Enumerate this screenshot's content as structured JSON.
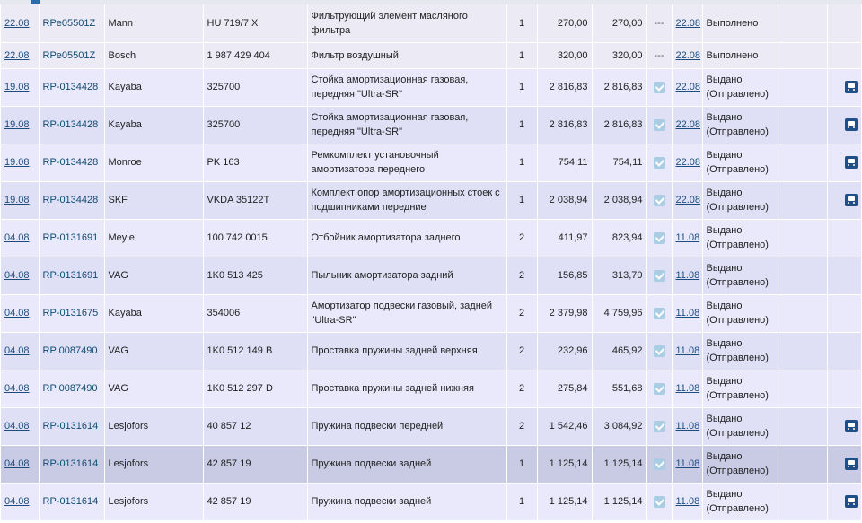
{
  "rows": [
    {
      "date": "22.08",
      "order": "RPe05501Z",
      "brand": "Mann",
      "article": "HU 719/7 X",
      "description": "Фильтрующий элемент масляного фильтра",
      "qty": "1",
      "price": "270,00",
      "sum": "270,00",
      "mark": "---",
      "delivery_date": "22.08",
      "status": "Выполнено",
      "truck": false,
      "style": "plain"
    },
    {
      "date": "22.08",
      "order": "RPe05501Z",
      "brand": "Bosch",
      "article": "1 987 429 404",
      "description": "Фильтр воздушный",
      "qty": "1",
      "price": "320,00",
      "sum": "320,00",
      "mark": "---",
      "delivery_date": "22.08",
      "status": "Выполнено",
      "truck": false,
      "style": "plain",
      "single": true
    },
    {
      "date": "19.08",
      "order": "RP-0134428",
      "brand": "Kayaba",
      "article": "325700",
      "description": "Стойка амортизационная газовая, передняя \"Ultra-SR\"",
      "qty": "1",
      "price": "2 816,83",
      "sum": "2 816,83",
      "mark": "check",
      "delivery_date": "22.08",
      "status": "Выдано (Отправлено)",
      "truck": true,
      "style": "odd"
    },
    {
      "date": "19.08",
      "order": "RP-0134428",
      "brand": "Kayaba",
      "article": "325700",
      "description": "Стойка амортизационная газовая, передняя \"Ultra-SR\"",
      "qty": "1",
      "price": "2 816,83",
      "sum": "2 816,83",
      "mark": "check",
      "delivery_date": "22.08",
      "status": "Выдано (Отправлено)",
      "truck": true,
      "style": "even"
    },
    {
      "date": "19.08",
      "order": "RP-0134428",
      "brand": "Monroe",
      "article": "PK 163",
      "description": "Ремкомплект установочный амортизатора переднего",
      "qty": "1",
      "price": "754,11",
      "sum": "754,11",
      "mark": "check",
      "delivery_date": "22.08",
      "status": "Выдано (Отправлено)",
      "truck": true,
      "style": "odd"
    },
    {
      "date": "19.08",
      "order": "RP-0134428",
      "brand": "SKF",
      "article": "VKDA 35122T",
      "description": "Комплект опор амортизационных стоек с подшипниками передние",
      "qty": "1",
      "price": "2 038,94",
      "sum": "2 038,94",
      "mark": "check",
      "delivery_date": "22.08",
      "status": "Выдано (Отправлено)",
      "truck": true,
      "style": "even"
    },
    {
      "date": "04.08",
      "order": "RP-0131691",
      "brand": "Meyle",
      "article": "100 742 0015",
      "description": "Отбойник амортизатора заднего",
      "qty": "2",
      "price": "411,97",
      "sum": "823,94",
      "mark": "check",
      "delivery_date": "11.08",
      "status": "Выдано (Отправлено)",
      "truck": false,
      "style": "odd"
    },
    {
      "date": "04.08",
      "order": "RP-0131691",
      "brand": "VAG",
      "article": "1K0 513 425",
      "description": "Пыльник амортизатора задний",
      "qty": "2",
      "price": "156,85",
      "sum": "313,70",
      "mark": "check",
      "delivery_date": "11.08",
      "status": "Выдано (Отправлено)",
      "truck": false,
      "style": "even"
    },
    {
      "date": "04.08",
      "order": "RP-0131675",
      "brand": "Kayaba",
      "article": "354006",
      "description": "Амортизатор подвески газовый, задней \"Ultra-SR\"",
      "qty": "2",
      "price": "2 379,98",
      "sum": "4 759,96",
      "mark": "check",
      "delivery_date": "11.08",
      "status": "Выдано (Отправлено)",
      "truck": false,
      "style": "odd"
    },
    {
      "date": "04.08",
      "order": "RP 0087490",
      "brand": "VAG",
      "article": "1K0 512 149 B",
      "description": "Проставка пружины задней верхняя",
      "qty": "2",
      "price": "232,96",
      "sum": "465,92",
      "mark": "check",
      "delivery_date": "11.08",
      "status": "Выдано (Отправлено)",
      "truck": false,
      "style": "even"
    },
    {
      "date": "04.08",
      "order": "RP 0087490",
      "brand": "VAG",
      "article": "1K0 512 297 D",
      "description": "Проставка пружины задней нижняя",
      "qty": "2",
      "price": "275,84",
      "sum": "551,68",
      "mark": "check",
      "delivery_date": "11.08",
      "status": "Выдано (Отправлено)",
      "truck": false,
      "style": "odd"
    },
    {
      "date": "04.08",
      "order": "RP-0131614",
      "brand": "Lesjofors",
      "article": "40 857 12",
      "description": "Пружина подвески передней",
      "qty": "2",
      "price": "1 542,46",
      "sum": "3 084,92",
      "mark": "check",
      "delivery_date": "11.08",
      "status": "Выдано (Отправлено)",
      "truck": true,
      "style": "even"
    },
    {
      "date": "04.08",
      "order": "RP-0131614",
      "brand": "Lesjofors",
      "article": "42 857 19",
      "description": "Пружина подвески задней",
      "qty": "1",
      "price": "1 125,14",
      "sum": "1 125,14",
      "mark": "check",
      "delivery_date": "11.08",
      "status": "Выдано (Отправлено)",
      "truck": true,
      "style": "sel"
    },
    {
      "date": "04.08",
      "order": "RP-0131614",
      "brand": "Lesjofors",
      "article": "42 857 19",
      "description": "Пружина подвески задней",
      "qty": "1",
      "price": "1 125,14",
      "sum": "1 125,14",
      "mark": "check",
      "delivery_date": "11.08",
      "status": "Выдано (Отправлено)",
      "truck": true,
      "style": "odd"
    }
  ],
  "colors": {
    "accent": "#1f4f86",
    "check": "#a9cde3",
    "row_odd": "#e9e9fb",
    "row_even": "#dfe0f6",
    "row_selected": "#c9cbe5"
  }
}
